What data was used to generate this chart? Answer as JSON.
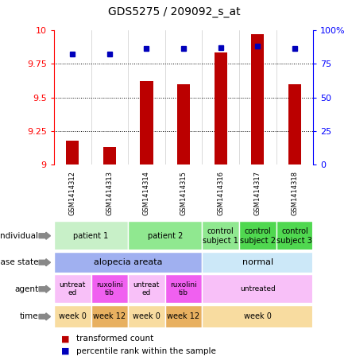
{
  "title": "GDS5275 / 209092_s_at",
  "samples": [
    "GSM1414312",
    "GSM1414313",
    "GSM1414314",
    "GSM1414315",
    "GSM1414316",
    "GSM1414317",
    "GSM1414318"
  ],
  "red_values": [
    9.18,
    9.13,
    9.62,
    9.6,
    9.83,
    9.97,
    9.6
  ],
  "blue_values": [
    82,
    82,
    86,
    86,
    87,
    88,
    86
  ],
  "ylim_left": [
    9.0,
    10.0
  ],
  "ylim_right": [
    0,
    100
  ],
  "yticks_left": [
    9.0,
    9.25,
    9.5,
    9.75,
    10.0
  ],
  "ytick_labels_left": [
    "9",
    "9.25",
    "9.5",
    "9.75",
    "10"
  ],
  "yticks_right": [
    0,
    25,
    50,
    75,
    100
  ],
  "ytick_labels_right": [
    "0",
    "25",
    "50",
    "75",
    "100%"
  ],
  "individual_data": [
    {
      "label": "patient 1",
      "span": [
        0,
        2
      ],
      "color": "#c8f0c8"
    },
    {
      "label": "patient 2",
      "span": [
        2,
        4
      ],
      "color": "#90e890"
    },
    {
      "label": "control\nsubject 1",
      "span": [
        4,
        5
      ],
      "color": "#90e890"
    },
    {
      "label": "control\nsubject 2",
      "span": [
        5,
        6
      ],
      "color": "#50d850"
    },
    {
      "label": "control\nsubject 3",
      "span": [
        6,
        7
      ],
      "color": "#50d850"
    }
  ],
  "disease_data": [
    {
      "label": "alopecia areata",
      "span": [
        0,
        4
      ],
      "color": "#a0b0f0"
    },
    {
      "label": "normal",
      "span": [
        4,
        7
      ],
      "color": "#cce8f8"
    }
  ],
  "agent_data": [
    {
      "label": "untreat\ned",
      "span": [
        0,
        1
      ],
      "color": "#f8c0f8"
    },
    {
      "label": "ruxolini\ntib",
      "span": [
        1,
        2
      ],
      "color": "#f060f0"
    },
    {
      "label": "untreat\ned",
      "span": [
        2,
        3
      ],
      "color": "#f8c0f8"
    },
    {
      "label": "ruxolini\ntib",
      "span": [
        3,
        4
      ],
      "color": "#f060f0"
    },
    {
      "label": "untreated",
      "span": [
        4,
        7
      ],
      "color": "#f8c0f8"
    }
  ],
  "time_data": [
    {
      "label": "week 0",
      "span": [
        0,
        1
      ],
      "color": "#f8dca0"
    },
    {
      "label": "week 12",
      "span": [
        1,
        2
      ],
      "color": "#e8b060"
    },
    {
      "label": "week 0",
      "span": [
        2,
        3
      ],
      "color": "#f8dca0"
    },
    {
      "label": "week 12",
      "span": [
        3,
        4
      ],
      "color": "#e8b060"
    },
    {
      "label": "week 0",
      "span": [
        4,
        7
      ],
      "color": "#f8dca0"
    }
  ],
  "row_labels": [
    "individual",
    "disease state",
    "agent",
    "time"
  ],
  "legend_red": "transformed count",
  "legend_blue": "percentile rank within the sample",
  "bar_color": "#bb0000",
  "dot_color": "#0000bb",
  "sample_bg": "#cccccc"
}
